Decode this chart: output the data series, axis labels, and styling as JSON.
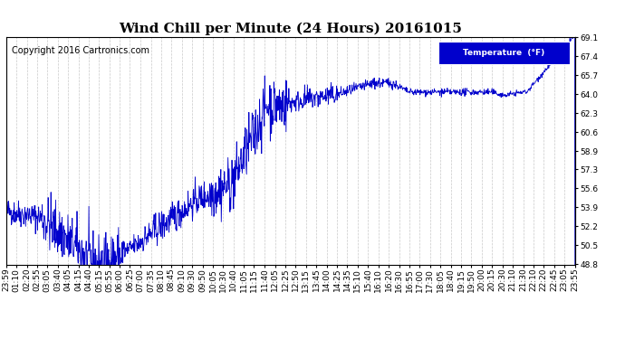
{
  "title": "Wind Chill per Minute (24 Hours) 20161015",
  "copyright": "Copyright 2016 Cartronics.com",
  "legend_label": "Temperature  (°F)",
  "line_color": "#0000CC",
  "background_color": "#ffffff",
  "plot_bg_color": "#ffffff",
  "grid_color": "#bbbbbb",
  "ylim": [
    48.8,
    69.1
  ],
  "yticks": [
    48.8,
    50.5,
    52.2,
    53.9,
    55.6,
    57.3,
    58.9,
    60.6,
    62.3,
    64.0,
    65.7,
    67.4,
    69.1
  ],
  "x_labels": [
    "23:59",
    "01:10",
    "02:20",
    "02:55",
    "03:05",
    "03:40",
    "04:05",
    "04:15",
    "04:40",
    "05:15",
    "05:55",
    "06:00",
    "06:25",
    "07:00",
    "07:35",
    "08:10",
    "08:45",
    "09:10",
    "09:30",
    "09:50",
    "10:05",
    "10:30",
    "10:40",
    "11:05",
    "11:15",
    "11:40",
    "12:05",
    "12:25",
    "12:50",
    "13:15",
    "13:45",
    "14:00",
    "14:25",
    "14:35",
    "15:10",
    "15:40",
    "16:10",
    "16:20",
    "16:30",
    "16:55",
    "17:00",
    "17:30",
    "18:05",
    "18:40",
    "19:15",
    "19:50",
    "20:00",
    "20:15",
    "20:30",
    "21:10",
    "21:30",
    "22:10",
    "22:20",
    "22:45",
    "23:05",
    "23:55"
  ],
  "title_fontsize": 11,
  "tick_fontsize": 6.5,
  "copyright_fontsize": 7
}
